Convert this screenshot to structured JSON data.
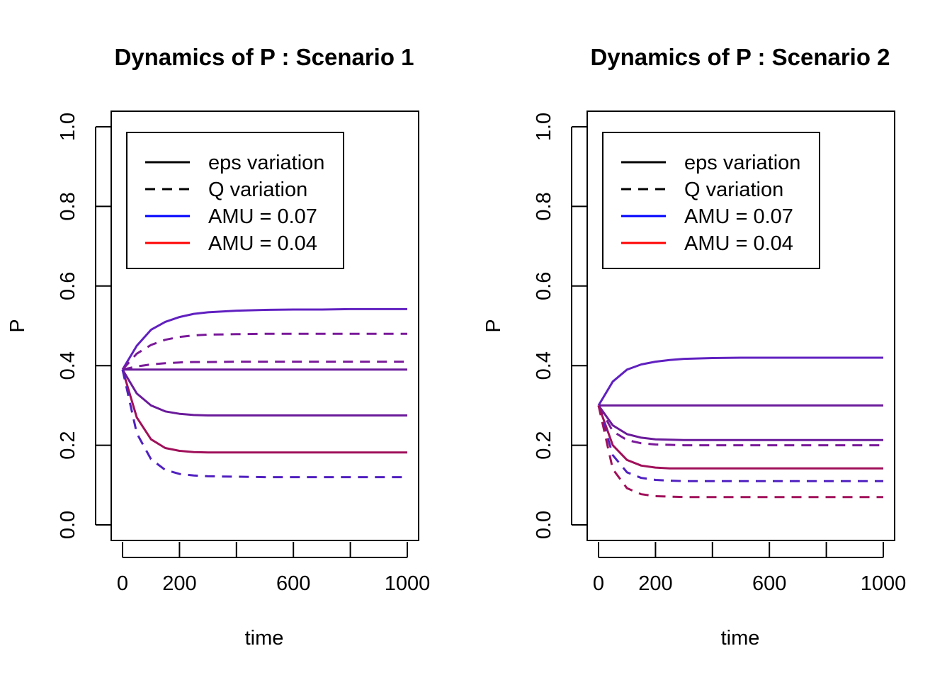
{
  "legend": {
    "items": [
      {
        "label": "eps variation",
        "color": "#000000",
        "dash": "solid"
      },
      {
        "label": "Q variation",
        "color": "#000000",
        "dash": "dashed"
      },
      {
        "label": "AMU = 0.07",
        "color": "#0000ff",
        "dash": "solid"
      },
      {
        "label": "AMU = 0.04",
        "color": "#ff0000",
        "dash": "solid"
      }
    ]
  },
  "chart_data": [
    {
      "type": "line",
      "title": "Dynamics of P : Scenario 1",
      "xlabel": "time",
      "ylabel": "P",
      "xlim": [
        0,
        1000
      ],
      "ylim": [
        0,
        1
      ],
      "xticks": [
        0,
        200,
        400,
        600,
        800,
        1000
      ],
      "xtick_labels": [
        "0",
        "200",
        "",
        "600",
        "",
        "1000"
      ],
      "yticks": [
        0,
        0.2,
        0.4,
        0.6,
        0.8,
        1
      ],
      "ytick_labels": [
        "0.0",
        "0.2",
        "0.4",
        "0.6",
        "0.8",
        "1.0"
      ],
      "legend_position": "top-left",
      "x": [
        0,
        50,
        100,
        150,
        200,
        250,
        300,
        400,
        500,
        600,
        700,
        800,
        900,
        1000
      ],
      "series": [
        {
          "dash": "solid",
          "color": "#6020c0",
          "values": [
            0.39,
            0.45,
            0.49,
            0.51,
            0.522,
            0.53,
            0.534,
            0.538,
            0.54,
            0.541,
            0.541,
            0.542,
            0.542,
            0.542
          ]
        },
        {
          "dash": "dashed",
          "color": "#7a1a9a",
          "values": [
            0.39,
            0.43,
            0.452,
            0.465,
            0.472,
            0.476,
            0.478,
            0.479,
            0.48,
            0.48,
            0.48,
            0.48,
            0.48,
            0.48
          ]
        },
        {
          "dash": "dashed",
          "color": "#7a1a9a",
          "values": [
            0.39,
            0.398,
            0.403,
            0.406,
            0.408,
            0.409,
            0.409,
            0.41,
            0.41,
            0.41,
            0.41,
            0.41,
            0.41,
            0.41
          ]
        },
        {
          "dash": "solid",
          "color": "#6a1a9a",
          "values": [
            0.39,
            0.39,
            0.39,
            0.39,
            0.39,
            0.39,
            0.39,
            0.39,
            0.39,
            0.39,
            0.39,
            0.39,
            0.39,
            0.39
          ]
        },
        {
          "dash": "solid",
          "color": "#6a1a9a",
          "values": [
            0.39,
            0.33,
            0.3,
            0.285,
            0.279,
            0.276,
            0.275,
            0.275,
            0.275,
            0.275,
            0.275,
            0.275,
            0.275,
            0.275
          ]
        },
        {
          "dash": "solid",
          "color": "#a0105a",
          "values": [
            0.39,
            0.27,
            0.215,
            0.193,
            0.186,
            0.183,
            0.182,
            0.182,
            0.182,
            0.182,
            0.182,
            0.182,
            0.182,
            0.182
          ]
        },
        {
          "dash": "dashed",
          "color": "#5020c0",
          "values": [
            0.39,
            0.23,
            0.165,
            0.138,
            0.128,
            0.124,
            0.122,
            0.121,
            0.12,
            0.12,
            0.12,
            0.12,
            0.12,
            0.12
          ]
        }
      ]
    },
    {
      "type": "line",
      "title": "Dynamics of P : Scenario 2",
      "xlabel": "time",
      "ylabel": "P",
      "xlim": [
        0,
        1000
      ],
      "ylim": [
        0,
        1
      ],
      "xticks": [
        0,
        200,
        400,
        600,
        800,
        1000
      ],
      "xtick_labels": [
        "0",
        "200",
        "",
        "600",
        "",
        "1000"
      ],
      "yticks": [
        0,
        0.2,
        0.4,
        0.6,
        0.8,
        1
      ],
      "ytick_labels": [
        "0.0",
        "0.2",
        "0.4",
        "0.6",
        "0.8",
        "1.0"
      ],
      "legend_position": "top-left",
      "x": [
        0,
        50,
        100,
        150,
        200,
        250,
        300,
        400,
        500,
        600,
        700,
        800,
        900,
        1000
      ],
      "series": [
        {
          "dash": "solid",
          "color": "#6020c0",
          "values": [
            0.3,
            0.36,
            0.39,
            0.403,
            0.41,
            0.414,
            0.417,
            0.419,
            0.42,
            0.42,
            0.42,
            0.42,
            0.42,
            0.42
          ]
        },
        {
          "dash": "solid",
          "color": "#6a1a9a",
          "values": [
            0.3,
            0.3,
            0.3,
            0.3,
            0.3,
            0.3,
            0.3,
            0.3,
            0.3,
            0.3,
            0.3,
            0.3,
            0.3,
            0.3
          ]
        },
        {
          "dash": "solid",
          "color": "#6a1a9a",
          "values": [
            0.3,
            0.25,
            0.228,
            0.219,
            0.215,
            0.214,
            0.213,
            0.213,
            0.213,
            0.213,
            0.213,
            0.213,
            0.213,
            0.213
          ]
        },
        {
          "dash": "dashed",
          "color": "#7a1a9a",
          "values": [
            0.3,
            0.235,
            0.213,
            0.205,
            0.202,
            0.201,
            0.2,
            0.2,
            0.2,
            0.2,
            0.2,
            0.2,
            0.2,
            0.2
          ]
        },
        {
          "dash": "solid",
          "color": "#a0105a",
          "values": [
            0.3,
            0.2,
            0.163,
            0.149,
            0.144,
            0.142,
            0.142,
            0.142,
            0.142,
            0.142,
            0.142,
            0.142,
            0.142,
            0.142
          ]
        },
        {
          "dash": "dashed",
          "color": "#5020c0",
          "values": [
            0.3,
            0.175,
            0.132,
            0.118,
            0.113,
            0.111,
            0.11,
            0.11,
            0.11,
            0.11,
            0.11,
            0.11,
            0.11,
            0.11
          ]
        },
        {
          "dash": "dashed",
          "color": "#a0105a",
          "values": [
            0.3,
            0.14,
            0.092,
            0.077,
            0.072,
            0.071,
            0.07,
            0.07,
            0.07,
            0.07,
            0.07,
            0.07,
            0.07,
            0.07
          ]
        }
      ]
    }
  ]
}
